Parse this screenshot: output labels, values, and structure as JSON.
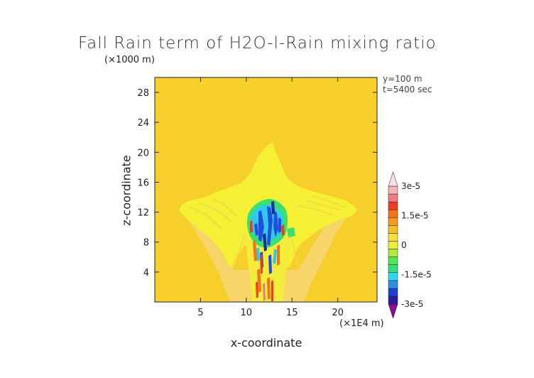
{
  "chart_data": {
    "type": "heatmap",
    "title": "Fall Rain term of H2O-l-Rain mixing ratio",
    "xlabel": "x-coordinate",
    "ylabel": "z-coordinate",
    "x_scale_label": "(×1E4 m)",
    "y_scale_label": "(×1000 m)",
    "annotations": [
      "y=100 m",
      "t=5400 sec"
    ],
    "xlim": [
      0,
      24.3
    ],
    "ylim": [
      0,
      30
    ],
    "x_ticks": [
      5,
      10,
      15,
      20
    ],
    "y_ticks": [
      4,
      8,
      12,
      16,
      20,
      24,
      28
    ],
    "colorbar": {
      "range": [
        -3e-05,
        3e-05
      ],
      "labels": [
        "3e-5",
        "1.5e-5",
        "0",
        "-1.5e-5",
        "-3e-5"
      ],
      "label_values": [
        3e-05,
        1.5e-05,
        0,
        -1.5e-05,
        -3e-05
      ],
      "colors": [
        "#8b0a8b",
        "#2a1a9e",
        "#1d3fd6",
        "#2f8fe6",
        "#31d6f0",
        "#33e080",
        "#55e655",
        "#a8ee3a",
        "#ecee3a",
        "#f7e23a",
        "#f3c222",
        "#f59a1a",
        "#f27318",
        "#e84020",
        "#f07a86",
        "#f6b4bc",
        "#fbdfe2"
      ]
    },
    "background_value": 0,
    "regions": [
      {
        "name": "positive-halo",
        "value": 1e-06,
        "x_range": [
          4,
          22
        ],
        "z_range": [
          0,
          13
        ]
      },
      {
        "name": "plume-anvil",
        "value": 3e-06,
        "x_range": [
          3,
          23
        ],
        "z_range": [
          8,
          21.5
        ]
      },
      {
        "name": "core-updraft",
        "value": -1.5e-05,
        "x_range": [
          10.5,
          15.5
        ],
        "z_range": [
          5,
          13.5
        ]
      },
      {
        "name": "rain-shaft",
        "value": 2e-05,
        "x_range": [
          10.5,
          14
        ],
        "z_range": [
          0,
          9
        ]
      }
    ]
  }
}
